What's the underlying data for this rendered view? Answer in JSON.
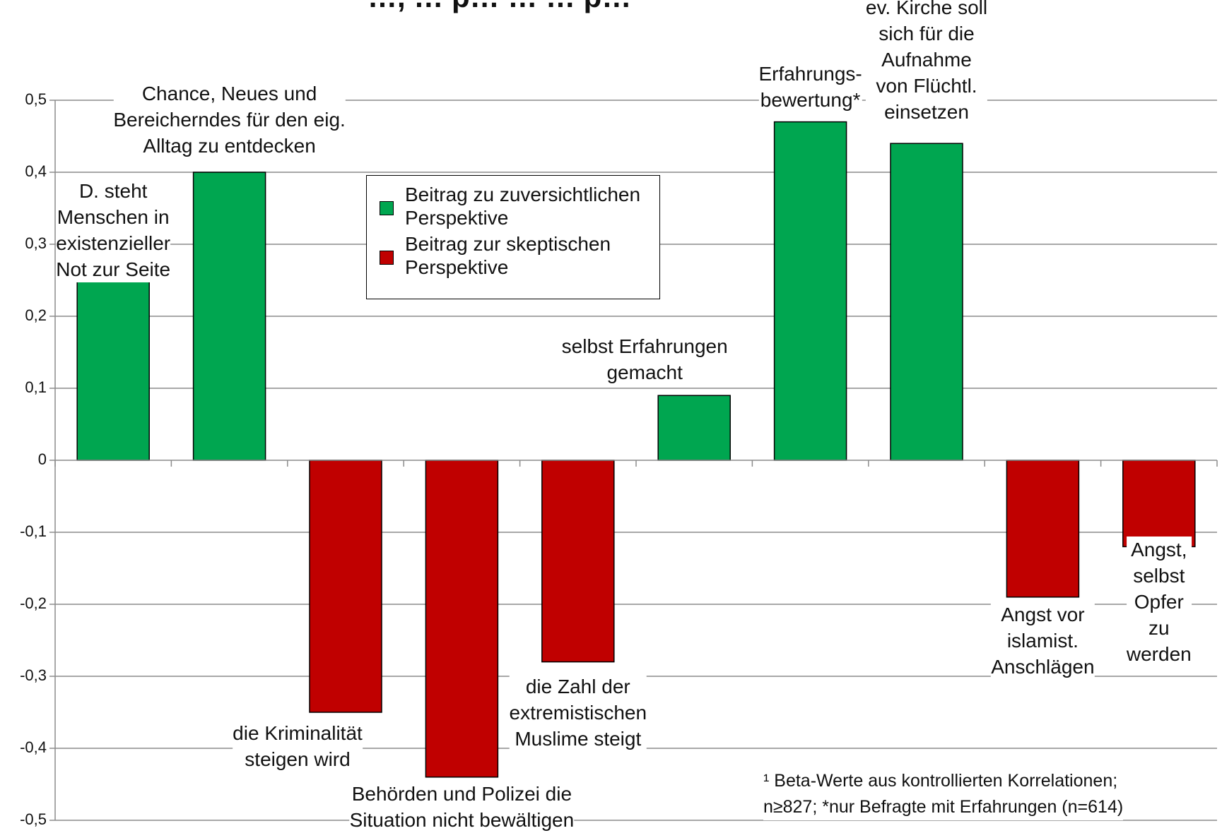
{
  "chart_data": {
    "type": "bar",
    "title": "…, … p… … … p…",
    "ylim": [
      -0.5,
      0.5
    ],
    "yticks": [
      "0,5",
      "0,4",
      "0,3",
      "0,2",
      "0,1",
      "0",
      "-0,1",
      "-0,2",
      "-0,3",
      "-0,4",
      "-0,5"
    ],
    "grid": true,
    "legend_placement": "top-center",
    "series": [
      {
        "name": "Beitrag zu zuversichtlichen\nPerspektive",
        "color": "#00a650"
      },
      {
        "name": "Beitrag zur skeptischen\nPerspektive",
        "color": "#c00000"
      }
    ],
    "categories": [
      "D. steht\nMenschen in\nexistenzieller\nNot zur Seite",
      "Chance, Neues und\nBereicherndes für den eig.\nAlltag zu entdecken",
      "die Kriminalität\nsteigen wird",
      "Behörden und Polizei die\nSituation nicht bewältigen",
      "die Zahl der\nextremistischen\nMuslime steigt",
      "selbst Erfahrungen\ngemacht",
      "Erfahrungs-\nbewertung*",
      "ev. Kirche soll\nsich für die\nAufnahme\nvon Flüchtl.\neinsetzen",
      "Angst vor\nislamist.\nAnschlägen",
      "Angst, selbst\nOpfer\nzu werden"
    ],
    "values": [
      0.25,
      0.4,
      -0.35,
      -0.44,
      -0.28,
      0.09,
      0.47,
      0.44,
      -0.19,
      -0.12
    ],
    "bar_series": [
      0,
      0,
      1,
      1,
      1,
      0,
      0,
      0,
      1,
      1
    ],
    "footnote": "¹ Beta-Werte aus kontrollierten Korrelationen;\nn≥827; *nur Befragte mit Erfahrungen (n=614)"
  }
}
